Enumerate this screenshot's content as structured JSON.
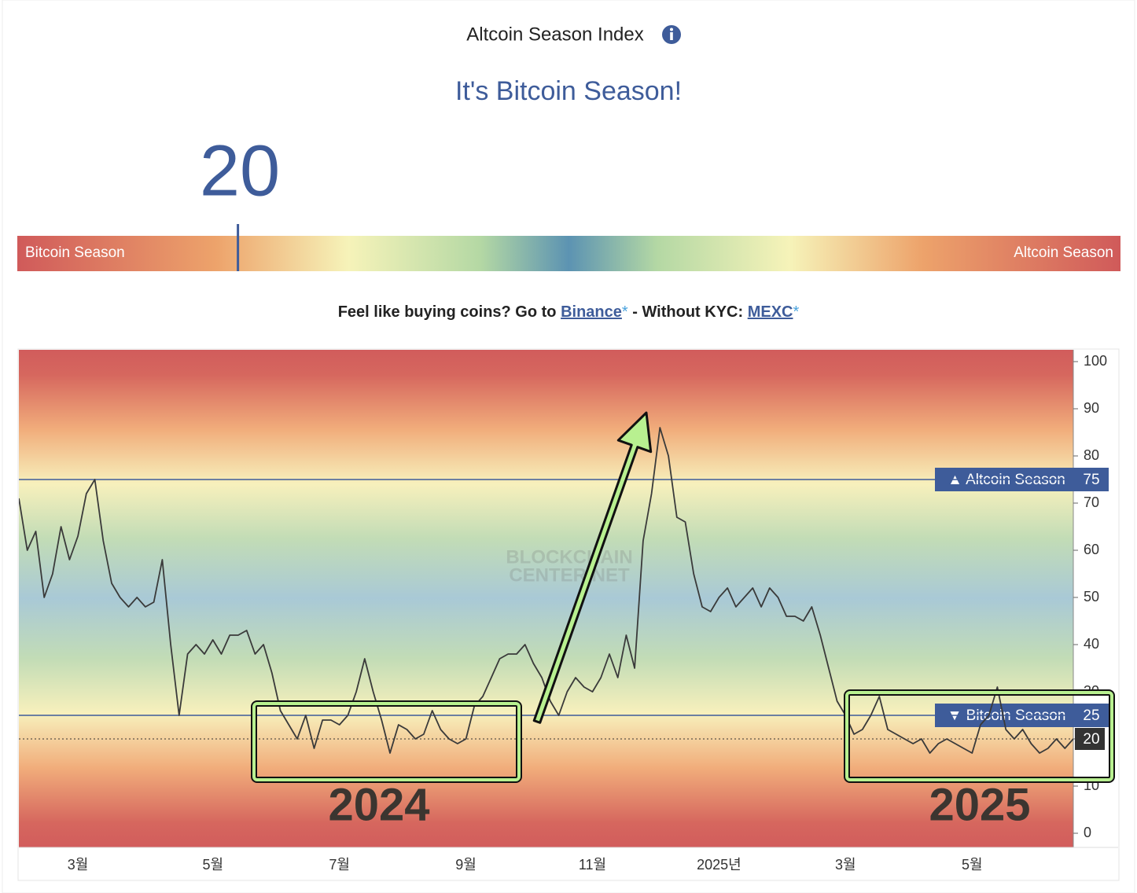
{
  "header": {
    "title": "Altcoin Season Index",
    "status": "It's Bitcoin Season!",
    "index_value": 20
  },
  "gauge": {
    "left_label": "Bitcoin Season",
    "right_label": "Altcoin Season",
    "lim": [
      0,
      100
    ]
  },
  "promo": {
    "text": "Feel like buying coins? Go to",
    "link1": "Binance",
    "mark1": "*",
    "middle": "- Without KYC:",
    "link2": "MEXC",
    "mark2": "*"
  },
  "chart_data": {
    "type": "line",
    "categories": [
      null,
      null,
      null,
      null,
      null,
      null,
      null,
      "3월",
      null,
      null,
      null,
      null,
      null,
      null,
      null,
      null,
      null,
      null,
      null,
      null,
      null,
      null,
      null,
      "5월",
      null,
      null,
      null,
      null,
      null,
      null,
      null,
      null,
      null,
      null,
      null,
      null,
      null,
      null,
      "7월",
      null,
      null,
      null,
      null,
      null,
      null,
      null,
      null,
      null,
      null,
      null,
      null,
      null,
      null,
      "9월",
      null,
      null,
      null,
      null,
      null,
      null,
      null,
      null,
      null,
      null,
      null,
      null,
      null,
      null,
      "11월",
      null,
      null,
      null,
      null,
      null,
      null,
      null,
      null,
      null,
      null,
      null,
      null,
      null,
      null,
      "2025년",
      null,
      null,
      null,
      null,
      null,
      null,
      null,
      null,
      null,
      null,
      null,
      null,
      null,
      null,
      "3월",
      null,
      null,
      null,
      null,
      null,
      null,
      null,
      null,
      null,
      null,
      null,
      null,
      null,
      null,
      "5월",
      null,
      null,
      null,
      null,
      null,
      null,
      null,
      null,
      null,
      null,
      null,
      null
    ],
    "values": [
      71,
      60,
      64,
      50,
      55,
      65,
      58,
      63,
      72,
      75,
      62,
      53,
      50,
      48,
      50,
      48,
      49,
      58,
      40,
      25,
      38,
      40,
      38,
      41,
      38,
      42,
      42,
      43,
      38,
      40,
      34,
      26,
      23,
      20,
      25,
      18,
      24,
      24,
      23,
      25,
      30,
      37,
      30,
      24,
      17,
      23,
      22,
      20,
      21,
      26,
      22,
      20,
      19,
      20,
      27,
      29,
      33,
      37,
      38,
      38,
      40,
      36,
      33,
      28,
      25,
      30,
      33,
      31,
      30,
      33,
      38,
      33,
      42,
      35,
      62,
      72,
      86,
      80,
      67,
      66,
      55,
      48,
      47,
      50,
      52,
      48,
      50,
      52,
      48,
      52,
      50,
      46,
      46,
      45,
      48,
      42,
      35,
      28,
      25,
      21,
      22,
      25,
      29,
      22,
      21,
      20,
      19,
      20,
      17,
      19,
      20,
      19,
      18,
      17,
      23,
      25,
      31,
      22,
      20,
      22,
      19,
      17,
      18,
      20,
      18,
      20
    ],
    "color": "#3a3a3a",
    "ylim": [
      0,
      100
    ],
    "yticks": [
      0,
      10,
      20,
      30,
      40,
      50,
      60,
      70,
      80,
      90,
      100
    ],
    "thresholds": [
      {
        "label": "▲ Altcoin Season",
        "value": 75
      },
      {
        "label": "▼ Bitcoin Season",
        "value": 25
      }
    ],
    "threshold_color": "#3e5c9a",
    "watermark": [
      "BLOCKCHAIN",
      "CENTER.NET"
    ],
    "annotations": [
      "2024",
      "2025"
    ]
  }
}
